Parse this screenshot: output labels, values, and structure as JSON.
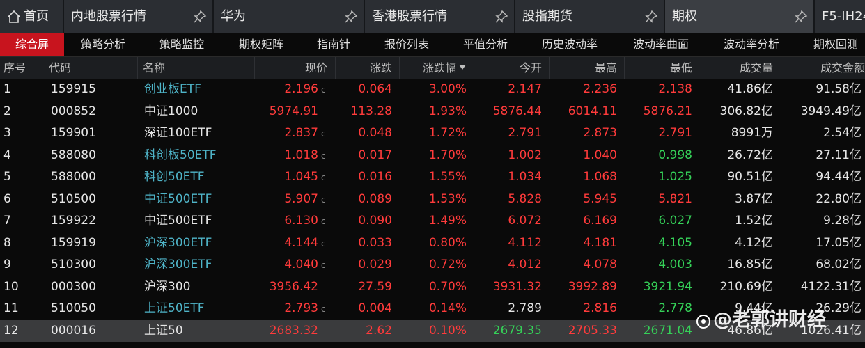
{
  "tabs": [
    {
      "label": "首页",
      "home": true
    },
    {
      "label": "内地股票行情",
      "pin": true
    },
    {
      "label": "华为",
      "pin": true
    },
    {
      "label": "香港股票行情",
      "pin": true
    },
    {
      "label": "股指期货",
      "pin": true
    },
    {
      "label": "期权",
      "pin": true,
      "active": true
    },
    {
      "label": "F5-IH24"
    }
  ],
  "subtabs": [
    {
      "label": "综合屏",
      "active": true
    },
    {
      "label": "策略分析"
    },
    {
      "label": "策略监控"
    },
    {
      "label": "期权矩阵"
    },
    {
      "label": "指南针"
    },
    {
      "label": "报价列表"
    },
    {
      "label": "平值分析"
    },
    {
      "label": "历史波动率"
    },
    {
      "label": "波动率曲面"
    },
    {
      "label": "波动率分析"
    },
    {
      "label": "期权回测"
    }
  ],
  "table": {
    "header": [
      "序号",
      "代码",
      "名称",
      "现价",
      "涨跌",
      "涨跌幅",
      "今开",
      "最高",
      "最低",
      "成交量",
      "成交金额"
    ],
    "sort_column": 5,
    "palette": {
      "w": "#e6e6e6",
      "l": "#4fb4c8",
      "u": "#ff3b3b",
      "d": "#35d158"
    },
    "selected_row": 11,
    "rows": [
      {
        "cells": [
          "1",
          "159915",
          "创业板ETF",
          "2.196",
          "0.064",
          "3.00%",
          "2.147",
          "2.236",
          "2.138",
          "41.86亿",
          "91.58亿"
        ],
        "tones": [
          "w",
          "w",
          "l",
          "u",
          "u",
          "u",
          "u",
          "u",
          "u",
          "w",
          "w"
        ],
        "flag": "c"
      },
      {
        "cells": [
          "2",
          "000852",
          "中证1000",
          "5974.91",
          "113.28",
          "1.93%",
          "5876.44",
          "6014.11",
          "5876.21",
          "306.82亿",
          "3949.49亿"
        ],
        "tones": [
          "w",
          "w",
          "w",
          "u",
          "u",
          "u",
          "u",
          "u",
          "u",
          "w",
          "w"
        ]
      },
      {
        "cells": [
          "3",
          "159901",
          "深证100ETF",
          "2.837",
          "0.048",
          "1.72%",
          "2.791",
          "2.873",
          "2.791",
          "8991万",
          "2.54亿"
        ],
        "tones": [
          "w",
          "w",
          "w",
          "u",
          "u",
          "u",
          "u",
          "u",
          "u",
          "w",
          "w"
        ],
        "flag": "c"
      },
      {
        "cells": [
          "4",
          "588080",
          "科创板50ETF",
          "1.018",
          "0.017",
          "1.70%",
          "1.002",
          "1.040",
          "0.998",
          "26.72亿",
          "27.11亿"
        ],
        "tones": [
          "w",
          "w",
          "l",
          "u",
          "u",
          "u",
          "u",
          "u",
          "d",
          "w",
          "w"
        ],
        "flag": "c"
      },
      {
        "cells": [
          "5",
          "588000",
          "科创50ETF",
          "1.045",
          "0.016",
          "1.55%",
          "1.034",
          "1.068",
          "1.025",
          "90.51亿",
          "94.44亿"
        ],
        "tones": [
          "w",
          "w",
          "l",
          "u",
          "u",
          "u",
          "u",
          "u",
          "d",
          "w",
          "w"
        ],
        "flag": "c"
      },
      {
        "cells": [
          "6",
          "510500",
          "中证500ETF",
          "5.907",
          "0.089",
          "1.53%",
          "5.828",
          "5.945",
          "5.821",
          "3.87亿",
          "22.80亿"
        ],
        "tones": [
          "w",
          "w",
          "l",
          "u",
          "u",
          "u",
          "u",
          "u",
          "u",
          "w",
          "w"
        ],
        "flag": "c"
      },
      {
        "cells": [
          "7",
          "159922",
          "中证500ETF",
          "6.130",
          "0.090",
          "1.49%",
          "6.072",
          "6.169",
          "6.027",
          "1.52亿",
          "9.28亿"
        ],
        "tones": [
          "w",
          "w",
          "w",
          "u",
          "u",
          "u",
          "u",
          "u",
          "d",
          "w",
          "w"
        ],
        "flag": "c"
      },
      {
        "cells": [
          "8",
          "159919",
          "沪深300ETF",
          "4.144",
          "0.033",
          "0.80%",
          "4.112",
          "4.181",
          "4.105",
          "4.12亿",
          "17.05亿"
        ],
        "tones": [
          "w",
          "w",
          "l",
          "u",
          "u",
          "u",
          "u",
          "u",
          "d",
          "w",
          "w"
        ],
        "flag": "c"
      },
      {
        "cells": [
          "9",
          "510300",
          "沪深300ETF",
          "4.040",
          "0.029",
          "0.72%",
          "4.012",
          "4.078",
          "4.003",
          "16.85亿",
          "68.02亿"
        ],
        "tones": [
          "w",
          "w",
          "l",
          "u",
          "u",
          "u",
          "u",
          "u",
          "d",
          "w",
          "w"
        ],
        "flag": "c"
      },
      {
        "cells": [
          "10",
          "000300",
          "沪深300",
          "3956.42",
          "27.59",
          "0.70%",
          "3931.32",
          "3992.89",
          "3921.94",
          "210.69亿",
          "4122.31亿"
        ],
        "tones": [
          "w",
          "w",
          "w",
          "u",
          "u",
          "u",
          "u",
          "u",
          "d",
          "w",
          "w"
        ]
      },
      {
        "cells": [
          "11",
          "510050",
          "上证50ETF",
          "2.793",
          "0.004",
          "0.14%",
          "2.789",
          "2.816",
          "2.778",
          "9.44亿",
          "26.29亿"
        ],
        "tones": [
          "w",
          "w",
          "l",
          "u",
          "u",
          "u",
          "w",
          "u",
          "d",
          "w",
          "w"
        ],
        "flag": "c"
      },
      {
        "cells": [
          "12",
          "000016",
          "上证50",
          "2683.32",
          "2.62",
          "0.10%",
          "2679.35",
          "2705.33",
          "2671.04",
          "46.86亿",
          "1026.41亿"
        ],
        "tones": [
          "w",
          "w",
          "w",
          "u",
          "u",
          "u",
          "d",
          "u",
          "d",
          "w",
          "w"
        ]
      }
    ]
  },
  "watermark": "@老郭讲财经"
}
